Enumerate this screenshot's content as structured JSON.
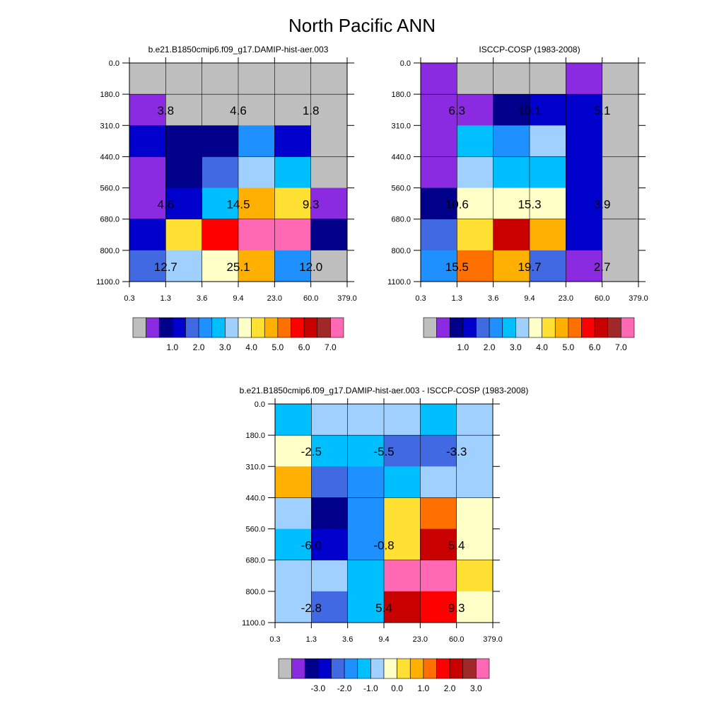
{
  "title": "North Pacific ANN",
  "palette": {
    "absolute": [
      "#bebebe",
      "#8a2be2",
      "#00008b",
      "#0000cd",
      "#4169e1",
      "#1e90ff",
      "#00bfff",
      "#a0d0ff",
      "#ffffc8",
      "#ffe033",
      "#ffb000",
      "#ff7000",
      "#ff0000",
      "#c80000",
      "#a02828",
      "#ff69b4"
    ],
    "difference": [
      "#bebebe",
      "#8a2be2",
      "#00008b",
      "#0000cd",
      "#4169e1",
      "#1e90ff",
      "#00bfff",
      "#a0d0ff",
      "#ffffc8",
      "#ffe033",
      "#ffb000",
      "#ff7000",
      "#ff0000",
      "#c80000",
      "#a02828",
      "#ff69b4"
    ]
  },
  "chart_data": [
    {
      "type": "heatmap",
      "title": "b.e21.B1850cmip6.f09_g17.DAMIP-hist-aer.003",
      "x_ticks": [
        "0.3",
        "1.3",
        "3.6",
        "9.4",
        "23.0",
        "60.0",
        "379.0"
      ],
      "y_ticks": [
        "0.0",
        "180.0",
        "310.0",
        "440.0",
        "560.0",
        "680.0",
        "800.0",
        "1100.0"
      ],
      "colorbar_labels": [
        "1.0",
        "2.0",
        "3.0",
        "4.0",
        "5.0",
        "6.0",
        "7.0"
      ],
      "cells": [
        [
          0,
          0,
          0,
          0,
          0,
          0
        ],
        [
          1,
          0,
          0,
          0,
          0,
          0
        ],
        [
          3,
          2,
          2,
          5,
          3,
          0
        ],
        [
          1,
          2,
          4,
          7,
          6,
          0
        ],
        [
          1,
          3,
          6,
          10,
          9,
          1
        ],
        [
          3,
          9,
          12,
          15,
          15,
          2
        ],
        [
          4,
          7,
          8,
          10,
          5,
          0
        ]
      ],
      "annotations": [
        {
          "row": 1,
          "col": 0.5,
          "text": "3.8"
        },
        {
          "row": 1,
          "col": 2.5,
          "text": "4.6"
        },
        {
          "row": 1,
          "col": 4.5,
          "text": "1.8"
        },
        {
          "row": 4,
          "col": 0.5,
          "text": "4.6"
        },
        {
          "row": 4,
          "col": 2.5,
          "text": "14.5"
        },
        {
          "row": 4,
          "col": 4.5,
          "text": "9.3"
        },
        {
          "row": 6,
          "col": 0.5,
          "text": "12.7"
        },
        {
          "row": 6,
          "col": 2.5,
          "text": "25.1"
        },
        {
          "row": 6,
          "col": 4.5,
          "text": "12.0"
        }
      ]
    },
    {
      "type": "heatmap",
      "title": "ISCCP-COSP (1983-2008)",
      "x_ticks": [
        "0.3",
        "1.3",
        "3.6",
        "9.4",
        "23.0",
        "60.0",
        "379.0"
      ],
      "y_ticks": [
        "0.0",
        "180.0",
        "310.0",
        "440.0",
        "560.0",
        "680.0",
        "800.0",
        "1100.0"
      ],
      "colorbar_labels": [
        "1.0",
        "2.0",
        "3.0",
        "4.0",
        "5.0",
        "6.0",
        "7.0"
      ],
      "cells": [
        [
          1,
          0,
          0,
          0,
          1,
          0
        ],
        [
          1,
          1,
          2,
          3,
          3,
          0
        ],
        [
          1,
          6,
          5,
          7,
          3,
          0
        ],
        [
          1,
          7,
          6,
          6,
          3,
          0
        ],
        [
          2,
          8,
          8,
          8,
          3,
          0
        ],
        [
          4,
          9,
          13,
          10,
          3,
          0
        ],
        [
          5,
          11,
          10,
          4,
          1,
          0
        ]
      ],
      "annotations": [
        {
          "row": 1,
          "col": 0.5,
          "text": "6.3"
        },
        {
          "row": 1,
          "col": 2.5,
          "text": "10.1"
        },
        {
          "row": 1,
          "col": 4.5,
          "text": "5.1"
        },
        {
          "row": 4,
          "col": 0.5,
          "text": "10.6"
        },
        {
          "row": 4,
          "col": 2.5,
          "text": "15.3"
        },
        {
          "row": 4,
          "col": 4.5,
          "text": "3.9"
        },
        {
          "row": 6,
          "col": 0.5,
          "text": "15.5"
        },
        {
          "row": 6,
          "col": 2.5,
          "text": "19.7"
        },
        {
          "row": 6,
          "col": 4.5,
          "text": "2.7"
        }
      ]
    },
    {
      "type": "heatmap",
      "title": "b.e21.B1850cmip6.f09_g17.DAMIP-hist-aer.003 - ISCCP-COSP (1983-2008)",
      "x_ticks": [
        "0.3",
        "1.3",
        "3.6",
        "9.4",
        "23.0",
        "60.0",
        "379.0"
      ],
      "y_ticks": [
        "0.0",
        "180.0",
        "310.0",
        "440.0",
        "560.0",
        "680.0",
        "800.0",
        "1100.0"
      ],
      "colorbar_labels": [
        "-3.0",
        "-2.0",
        "-1.0",
        "0.0",
        "1.0",
        "2.0",
        "3.0"
      ],
      "cells": [
        [
          6,
          7,
          7,
          7,
          6,
          7
        ],
        [
          8,
          6,
          6,
          4,
          4,
          7
        ],
        [
          10,
          4,
          5,
          6,
          7,
          7
        ],
        [
          7,
          2,
          5,
          9,
          11,
          8
        ],
        [
          6,
          3,
          5,
          9,
          13,
          8
        ],
        [
          7,
          7,
          6,
          15,
          15,
          9
        ],
        [
          7,
          4,
          6,
          13,
          12,
          8
        ]
      ],
      "annotations": [
        {
          "row": 1,
          "col": 0.5,
          "text": "-2.5"
        },
        {
          "row": 1,
          "col": 2.5,
          "text": "-5.5"
        },
        {
          "row": 1,
          "col": 4.5,
          "text": "-3.3"
        },
        {
          "row": 4,
          "col": 0.5,
          "text": "-6.0"
        },
        {
          "row": 4,
          "col": 2.5,
          "text": "-0.8"
        },
        {
          "row": 4,
          "col": 4.5,
          "text": "5.4"
        },
        {
          "row": 6,
          "col": 0.5,
          "text": "-2.8"
        },
        {
          "row": 6,
          "col": 2.5,
          "text": "5.4"
        },
        {
          "row": 6,
          "col": 4.5,
          "text": "9.3"
        }
      ]
    }
  ]
}
